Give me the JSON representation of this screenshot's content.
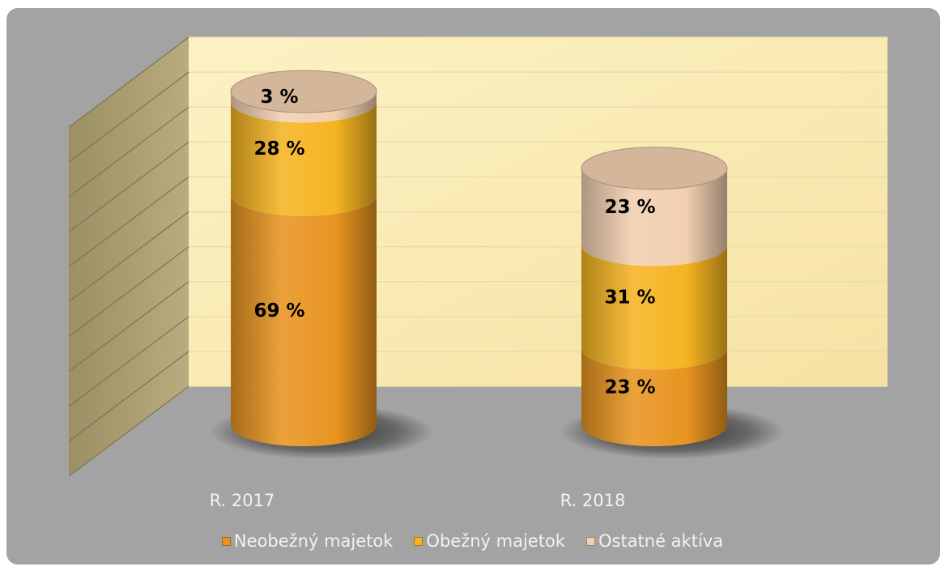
{
  "chart_data": {
    "type": "bar",
    "variant": "stacked-cylinder-3d",
    "title": "",
    "xlabel": "",
    "ylabel": "",
    "ylim": [
      0,
      100
    ],
    "grid": true,
    "legend_position": "bottom",
    "categories": [
      "R. 2017",
      "R. 2018"
    ],
    "series": [
      {
        "name": "Neobežný majetok",
        "values": [
          69,
          23
        ],
        "labels": [
          "69 %",
          "23 %"
        ],
        "color": "#e89420"
      },
      {
        "name": "Obežný majetok",
        "values": [
          28,
          31
        ],
        "labels": [
          "28 %",
          "31 %"
        ],
        "color": "#f5b422"
      },
      {
        "name": "Ostatné aktíva",
        "values": [
          3,
          23
        ],
        "labels": [
          "3 %",
          "23 %"
        ],
        "color": "#f1cfb0"
      }
    ]
  }
}
